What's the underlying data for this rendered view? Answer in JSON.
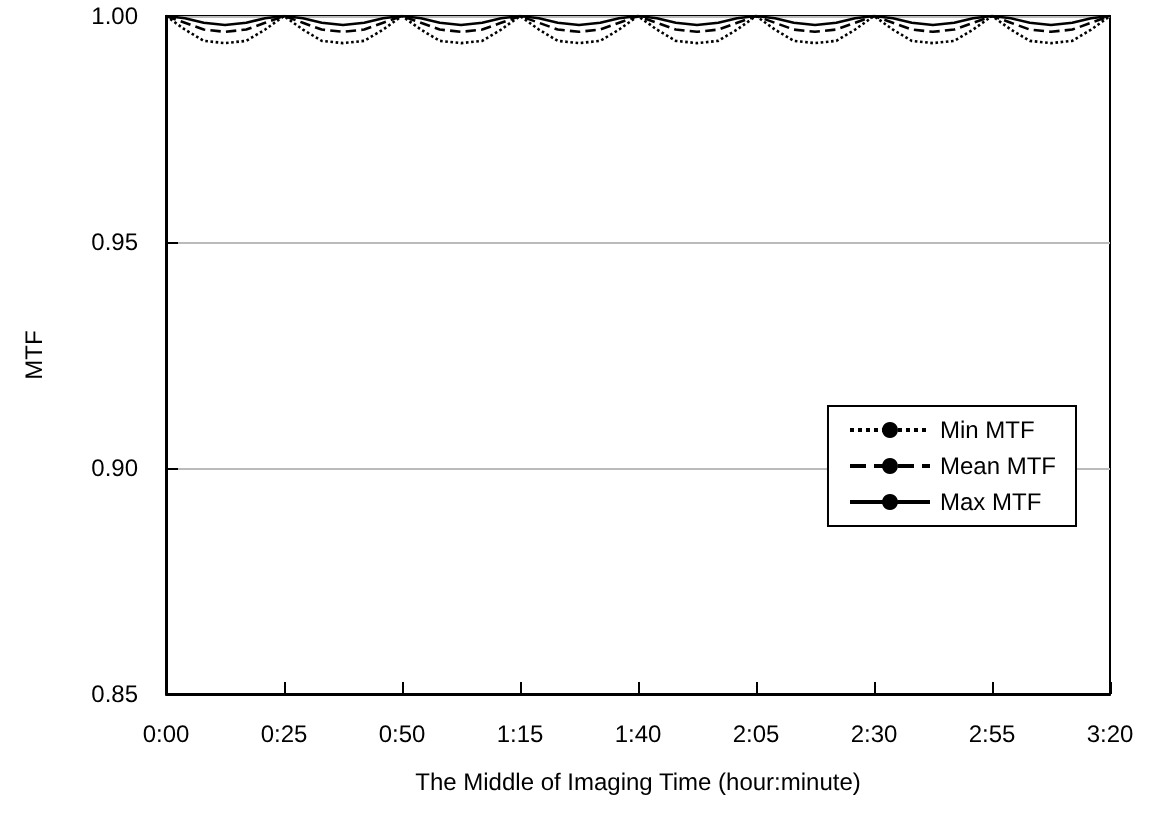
{
  "chart_data": {
    "type": "line",
    "xlabel": "The Middle of Imaging Time (hour:minute)",
    "ylabel": "MTF",
    "x": [
      0,
      0.0667,
      0.1333,
      0.2083,
      0.2833,
      0.35,
      0.4167,
      0.4833,
      0.55,
      0.625,
      0.7,
      0.7667,
      0.8333,
      0.9,
      0.9667,
      1.0417,
      1.1167,
      1.1833,
      1.25,
      1.3167,
      1.3833,
      1.4583,
      1.5333,
      1.6,
      1.6667,
      1.7333,
      1.8,
      1.875,
      1.95,
      2.0167,
      2.0833,
      2.15,
      2.2167,
      2.2917,
      2.3667,
      2.4333,
      2.5,
      2.5667,
      2.6333,
      2.7083,
      2.7833,
      2.85,
      2.9167,
      2.9833,
      3.05,
      3.125,
      3.2,
      3.2667,
      3.3333
    ],
    "series": [
      {
        "name": "Min MTF",
        "color": "#000000",
        "line_style": "dotted",
        "values": [
          1.0,
          0.997,
          0.9945,
          0.994,
          0.9945,
          0.997,
          1.0,
          0.997,
          0.9945,
          0.994,
          0.9945,
          0.997,
          1.0,
          0.997,
          0.9945,
          0.994,
          0.9945,
          0.997,
          1.0,
          0.997,
          0.9945,
          0.994,
          0.9945,
          0.997,
          1.0,
          0.997,
          0.9945,
          0.994,
          0.9945,
          0.997,
          1.0,
          0.997,
          0.9945,
          0.994,
          0.9945,
          0.997,
          1.0,
          0.997,
          0.9945,
          0.994,
          0.9945,
          0.997,
          1.0,
          0.997,
          0.9945,
          0.994,
          0.9945,
          0.997,
          1.0
        ]
      },
      {
        "name": "Mean MTF",
        "color": "#000000",
        "line_style": "dashed",
        "values": [
          1.0,
          0.9985,
          0.997,
          0.9965,
          0.997,
          0.9985,
          1.0,
          0.9985,
          0.997,
          0.9965,
          0.997,
          0.9985,
          1.0,
          0.9985,
          0.997,
          0.9965,
          0.997,
          0.9985,
          1.0,
          0.9985,
          0.997,
          0.9965,
          0.997,
          0.9985,
          1.0,
          0.9985,
          0.997,
          0.9965,
          0.997,
          0.9985,
          1.0,
          0.9985,
          0.997,
          0.9965,
          0.997,
          0.9985,
          1.0,
          0.9985,
          0.997,
          0.9965,
          0.997,
          0.9985,
          1.0,
          0.9985,
          0.997,
          0.9965,
          0.997,
          0.9985,
          1.0
        ]
      },
      {
        "name": "Max MTF",
        "color": "#000000",
        "line_style": "solid",
        "values": [
          1.0,
          0.9995,
          0.9985,
          0.998,
          0.9985,
          0.9995,
          1.0,
          0.9995,
          0.9985,
          0.998,
          0.9985,
          0.9995,
          1.0,
          0.9995,
          0.9985,
          0.998,
          0.9985,
          0.9995,
          1.0,
          0.9995,
          0.9985,
          0.998,
          0.9985,
          0.9995,
          1.0,
          0.9995,
          0.9985,
          0.998,
          0.9985,
          0.9995,
          1.0,
          0.9995,
          0.9985,
          0.998,
          0.9985,
          0.9995,
          1.0,
          0.9995,
          0.9985,
          0.998,
          0.9985,
          0.9995,
          1.0,
          0.9995,
          0.9985,
          0.998,
          0.9985,
          0.9995,
          1.0
        ]
      }
    ],
    "xlim": [
      0,
      3.3333
    ],
    "xticks": [
      {
        "value": 0,
        "label": "0:00"
      },
      {
        "value": 0.4167,
        "label": "0:25"
      },
      {
        "value": 0.8333,
        "label": "0:50"
      },
      {
        "value": 1.25,
        "label": "1:15"
      },
      {
        "value": 1.6667,
        "label": "1:40"
      },
      {
        "value": 2.0833,
        "label": "2:05"
      },
      {
        "value": 2.5,
        "label": "2:30"
      },
      {
        "value": 2.9167,
        "label": "2:55"
      },
      {
        "value": 3.3333,
        "label": "3:20"
      }
    ],
    "ylim": [
      0.85,
      1.0
    ],
    "yticks": [
      {
        "value": 0.85,
        "label": "0.85"
      },
      {
        "value": 0.9,
        "label": "0.90"
      },
      {
        "value": 0.95,
        "label": "0.95"
      },
      {
        "value": 1.0,
        "label": "1.00"
      }
    ],
    "grid": "y",
    "legend": "right",
    "marker": "none"
  }
}
